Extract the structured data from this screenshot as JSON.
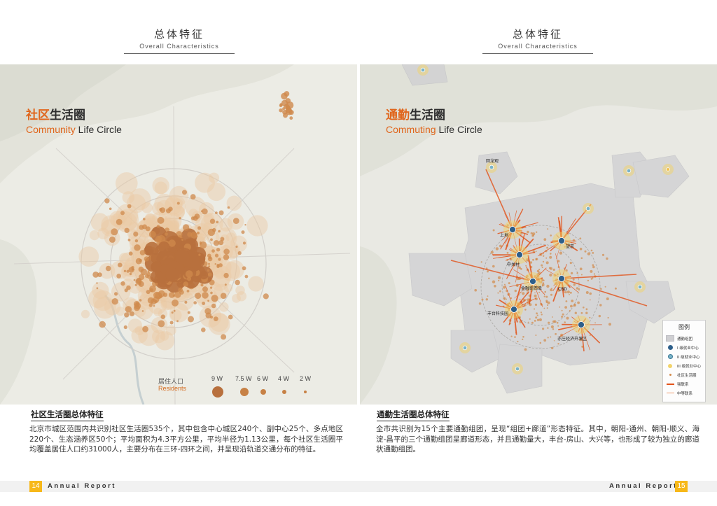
{
  "left": {
    "header": {
      "title_zh": "总体特征",
      "title_en": "Overall Characteristics"
    },
    "map": {
      "title_hl": "社区",
      "title_rest": "生活圈",
      "title_en_hl": "Community",
      "title_en_rest": " Life Circle",
      "legend": {
        "label_zh": "居住人口",
        "label_en": "Residents",
        "values": [
          "9 W",
          "7.5 W",
          "6 W",
          "4 W",
          "2 W"
        ]
      }
    },
    "section": {
      "title": "社区生活圈总体特征",
      "body": "北京市城区范围内共识别社区生活圈535个，其中包含中心城区240个、副中心25个、多点地区220个、生态涵养区50个；平均面积为4.3平方公里，平均半径为1.13公里，每个社区生活圈平均覆盖居住人口约31000人，主要分布在三环-四环之间，并呈现沿轨道交通分布的特征。"
    },
    "footer": {
      "page": "14",
      "label": "Annual Report"
    }
  },
  "right": {
    "header": {
      "title_zh": "总体特征",
      "title_en": "Overall Characteristics"
    },
    "map": {
      "title_hl": "通勤",
      "title_rest": "生活圈",
      "title_en_hl": "Commuting",
      "title_en_rest": " Life Circle",
      "place_labels": [
        {
          "text": "上地"
        },
        {
          "text": "望京"
        },
        {
          "text": "中关村"
        },
        {
          "text": "CBD"
        },
        {
          "text": "金融街"
        },
        {
          "text": "西单"
        },
        {
          "text": "丰台科技园"
        },
        {
          "text": "亦庄经济开发区"
        },
        {
          "text": "回龙观"
        }
      ],
      "legend": {
        "title": "图例",
        "items": [
          {
            "icon": "commute-cluster-icon",
            "label": "通勤组团"
          },
          {
            "icon": "level1-center-icon",
            "label": "I 级就业中心"
          },
          {
            "icon": "level2-center-icon",
            "label": "II 级就业中心"
          },
          {
            "icon": "level3-center-icon",
            "label": "III 级就业中心"
          },
          {
            "icon": "community-circle-icon",
            "label": "社区生活圈"
          },
          {
            "icon": "strong-link-icon",
            "label": "强联系"
          },
          {
            "icon": "medium-link-icon",
            "label": "中等联系"
          }
        ]
      }
    },
    "section": {
      "title": "通勤生活圈总体特征",
      "body": "全市共识别为15个主要通勤组团，呈现“组团+廊道”形态特征。其中，朝阳-通州、朝阳-顺义、海淀-昌平的三个通勤组团呈廊道形态，并且通勤量大，丰台-房山、大兴等，也形成了较为独立的廊道状通勤组团。"
    },
    "footer": {
      "page": "15",
      "label": "Annual Report"
    }
  },
  "colors": {
    "accent": "#e0651b",
    "bubble": "#c8763a",
    "center": "#2e5f8a",
    "link": "#e2531a",
    "page_badge": "#f7b819"
  }
}
